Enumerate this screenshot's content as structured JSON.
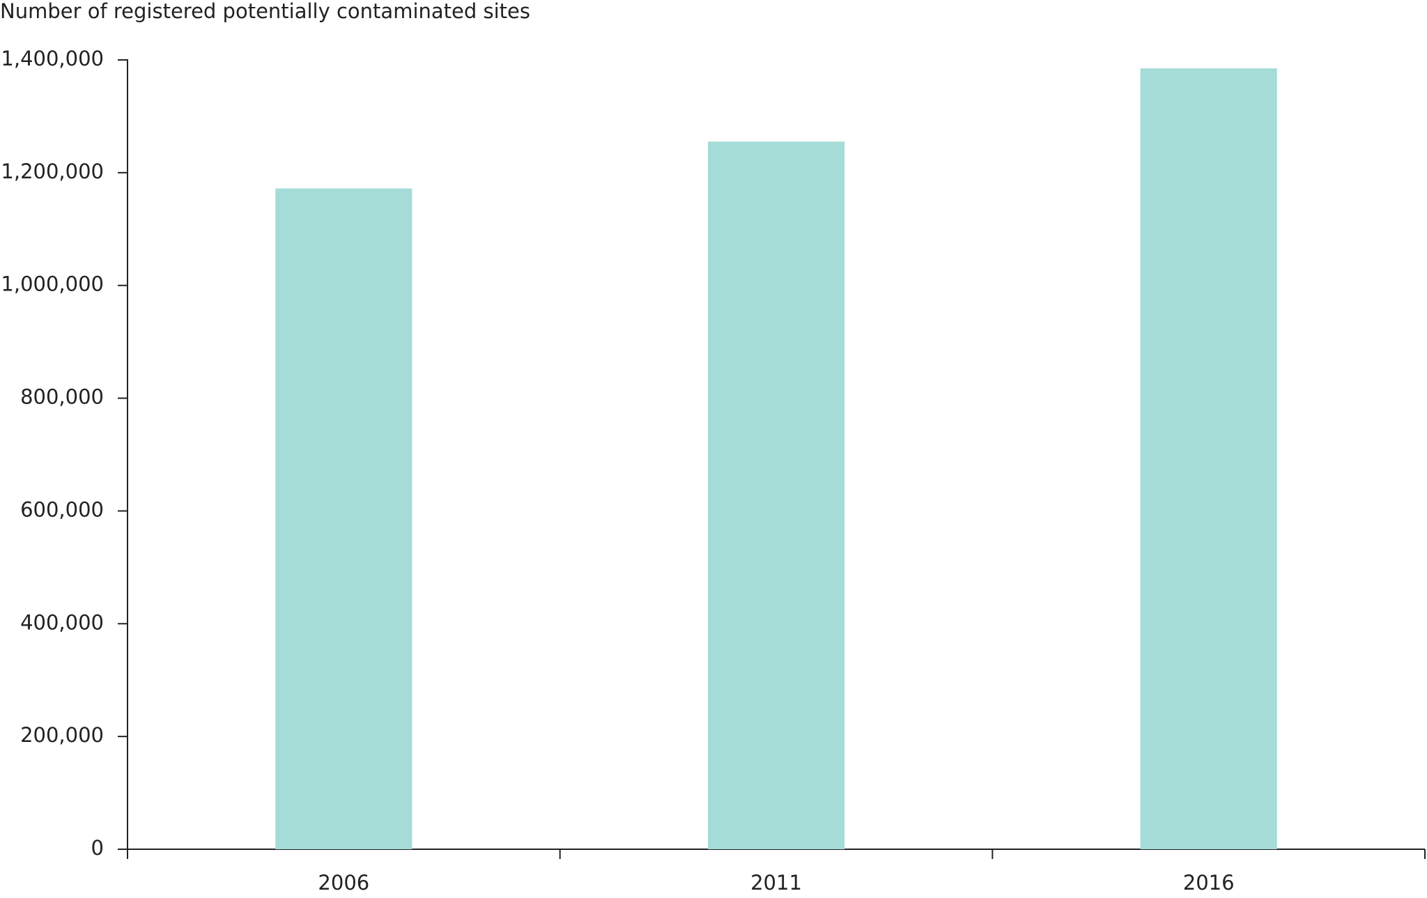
{
  "chart_data": {
    "type": "bar",
    "title": "Number of registered potentially contaminated sites",
    "categories": [
      "2006",
      "2011",
      "2016"
    ],
    "values": [
      1172000,
      1255000,
      1385000
    ],
    "color": "#a5dcd7",
    "ylim": [
      0,
      1400000
    ],
    "yticks": [
      0,
      {
        "value": 200000,
        "label": "200,000"
      },
      {
        "value": 400000,
        "label": "400,000"
      },
      {
        "value": 600000,
        "label": "600,000"
      },
      {
        "value": 800000,
        "label": "800,000"
      },
      {
        "value": 1000000,
        "label": "1,000,000"
      },
      {
        "value": 1200000,
        "label": "1,200,000"
      },
      {
        "value": 1400000,
        "label": "1,400,000"
      }
    ],
    "grid": false
  }
}
